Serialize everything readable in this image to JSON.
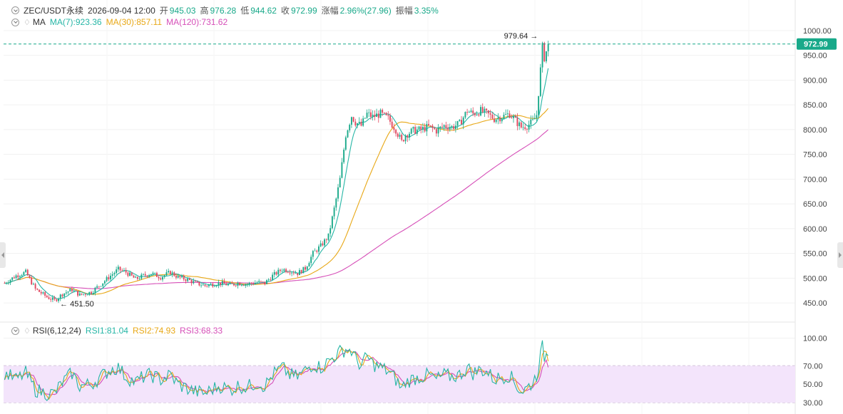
{
  "header": {
    "symbol": "ZEC/USDT永续",
    "datetime": "2026-09-04 12:00",
    "open_label": "开",
    "open": "945.03",
    "high_label": "高",
    "high": "976.28",
    "low_label": "低",
    "low": "944.62",
    "close_label": "收",
    "close": "972.99",
    "change_label": "涨幅",
    "change": "2.96%(27.96)",
    "amp_label": "振幅",
    "amp": "3.35%"
  },
  "ma_legend": {
    "label": "MA",
    "ma7": "MA(7):923.36",
    "ma30": "MA(30):857.11",
    "ma120": "MA(120):731.62"
  },
  "rsi_legend": {
    "label": "RSI(6,12,24)",
    "rsi1": "RSI1:81.04",
    "rsi2": "RSI2:74.93",
    "rsi3": "RSI3:68.33"
  },
  "colors": {
    "up": "#19a98a",
    "down": "#e0465e",
    "ma7": "#26b6a6",
    "ma30": "#e8a817",
    "ma120": "#d64fb8",
    "rsi_band": "#f3e4fb",
    "price_tag": "#19a98a"
  },
  "chart_data": {
    "type": "candlestick",
    "price_axis": {
      "ticks": [
        "1000.00",
        "950.00",
        "900.00",
        "850.00",
        "800.00",
        "750.00",
        "700.00",
        "650.00",
        "600.00",
        "550.00",
        "500.00",
        "450.00"
      ],
      "range": [
        420,
        1010
      ]
    },
    "rsi_axis": {
      "ticks": [
        "100.00",
        "70.00",
        "50.00",
        "30.00"
      ],
      "range": [
        20,
        105
      ],
      "band": [
        30,
        70
      ]
    },
    "last_price": "972.99",
    "max_label": "979.64 →",
    "min_label": "← 451.50",
    "waypoints": [
      [
        0,
        490
      ],
      [
        6,
        505
      ],
      [
        11,
        512
      ],
      [
        16,
        478
      ],
      [
        22,
        462
      ],
      [
        26,
        455
      ],
      [
        30,
        468
      ],
      [
        35,
        477
      ],
      [
        39,
        466
      ],
      [
        45,
        472
      ],
      [
        50,
        488
      ],
      [
        55,
        505
      ],
      [
        59,
        518
      ],
      [
        63,
        512
      ],
      [
        68,
        498
      ],
      [
        72,
        505
      ],
      [
        76,
        510
      ],
      [
        81,
        502
      ],
      [
        86,
        512
      ],
      [
        90,
        502
      ],
      [
        95,
        497
      ],
      [
        99,
        490
      ],
      [
        104,
        485
      ],
      [
        108,
        488
      ],
      [
        112,
        490
      ],
      [
        117,
        486
      ],
      [
        121,
        490
      ],
      [
        126,
        488
      ],
      [
        131,
        492
      ],
      [
        135,
        490
      ],
      [
        139,
        505
      ],
      [
        144,
        518
      ],
      [
        148,
        515
      ],
      [
        152,
        510
      ],
      [
        156,
        520
      ],
      [
        160,
        550
      ],
      [
        164,
        565
      ],
      [
        168,
        585
      ],
      [
        171,
        640
      ],
      [
        174,
        700
      ],
      [
        177,
        790
      ],
      [
        180,
        828
      ],
      [
        182,
        815
      ],
      [
        185,
        808
      ],
      [
        188,
        832
      ],
      [
        191,
        826
      ],
      [
        195,
        832
      ],
      [
        199,
        822
      ],
      [
        203,
        800
      ],
      [
        206,
        775
      ],
      [
        208,
        790
      ],
      [
        212,
        798
      ],
      [
        216,
        800
      ],
      [
        220,
        806
      ],
      [
        224,
        798
      ],
      [
        228,
        808
      ],
      [
        232,
        805
      ],
      [
        236,
        812
      ],
      [
        240,
        838
      ],
      [
        243,
        832
      ],
      [
        247,
        838
      ],
      [
        251,
        830
      ],
      [
        254,
        822
      ],
      [
        258,
        826
      ],
      [
        262,
        832
      ],
      [
        265,
        818
      ],
      [
        268,
        805
      ],
      [
        271,
        808
      ],
      [
        274,
        816
      ],
      [
        276,
        830
      ],
      [
        279,
        966
      ],
      [
        280,
        946
      ],
      [
        281,
        958
      ],
      [
        282,
        972.99
      ]
    ],
    "rsi_waypoints": [
      [
        0,
        62
      ],
      [
        6,
        55
      ],
      [
        11,
        62
      ],
      [
        16,
        44
      ],
      [
        22,
        40
      ],
      [
        26,
        40
      ],
      [
        30,
        52
      ],
      [
        35,
        62
      ],
      [
        39,
        48
      ],
      [
        45,
        50
      ],
      [
        50,
        58
      ],
      [
        55,
        66
      ],
      [
        59,
        68
      ],
      [
        63,
        58
      ],
      [
        68,
        52
      ],
      [
        72,
        58
      ],
      [
        76,
        60
      ],
      [
        81,
        55
      ],
      [
        86,
        60
      ],
      [
        90,
        50
      ],
      [
        95,
        45
      ],
      [
        99,
        42
      ],
      [
        104,
        40
      ],
      [
        108,
        45
      ],
      [
        112,
        48
      ],
      [
        117,
        44
      ],
      [
        121,
        48
      ],
      [
        126,
        47
      ],
      [
        131,
        52
      ],
      [
        135,
        48
      ],
      [
        139,
        60
      ],
      [
        144,
        68
      ],
      [
        148,
        60
      ],
      [
        152,
        58
      ],
      [
        156,
        65
      ],
      [
        160,
        72
      ],
      [
        164,
        68
      ],
      [
        168,
        75
      ],
      [
        171,
        80
      ],
      [
        174,
        85
      ],
      [
        177,
        88
      ],
      [
        180,
        86
      ],
      [
        182,
        78
      ],
      [
        185,
        70
      ],
      [
        188,
        80
      ],
      [
        191,
        72
      ],
      [
        195,
        68
      ],
      [
        199,
        64
      ],
      [
        203,
        55
      ],
      [
        206,
        45
      ],
      [
        208,
        52
      ],
      [
        212,
        56
      ],
      [
        216,
        58
      ],
      [
        220,
        60
      ],
      [
        224,
        55
      ],
      [
        228,
        60
      ],
      [
        232,
        58
      ],
      [
        236,
        60
      ],
      [
        240,
        68
      ],
      [
        243,
        62
      ],
      [
        247,
        66
      ],
      [
        251,
        62
      ],
      [
        254,
        55
      ],
      [
        258,
        58
      ],
      [
        262,
        60
      ],
      [
        265,
        50
      ],
      [
        268,
        42
      ],
      [
        271,
        46
      ],
      [
        274,
        52
      ],
      [
        276,
        60
      ],
      [
        279,
        90
      ],
      [
        280,
        80
      ],
      [
        281,
        82
      ],
      [
        282,
        81.04
      ]
    ],
    "ma_last": {
      "ma7": 923.36,
      "ma30": 857.11,
      "ma120": 731.62
    }
  }
}
